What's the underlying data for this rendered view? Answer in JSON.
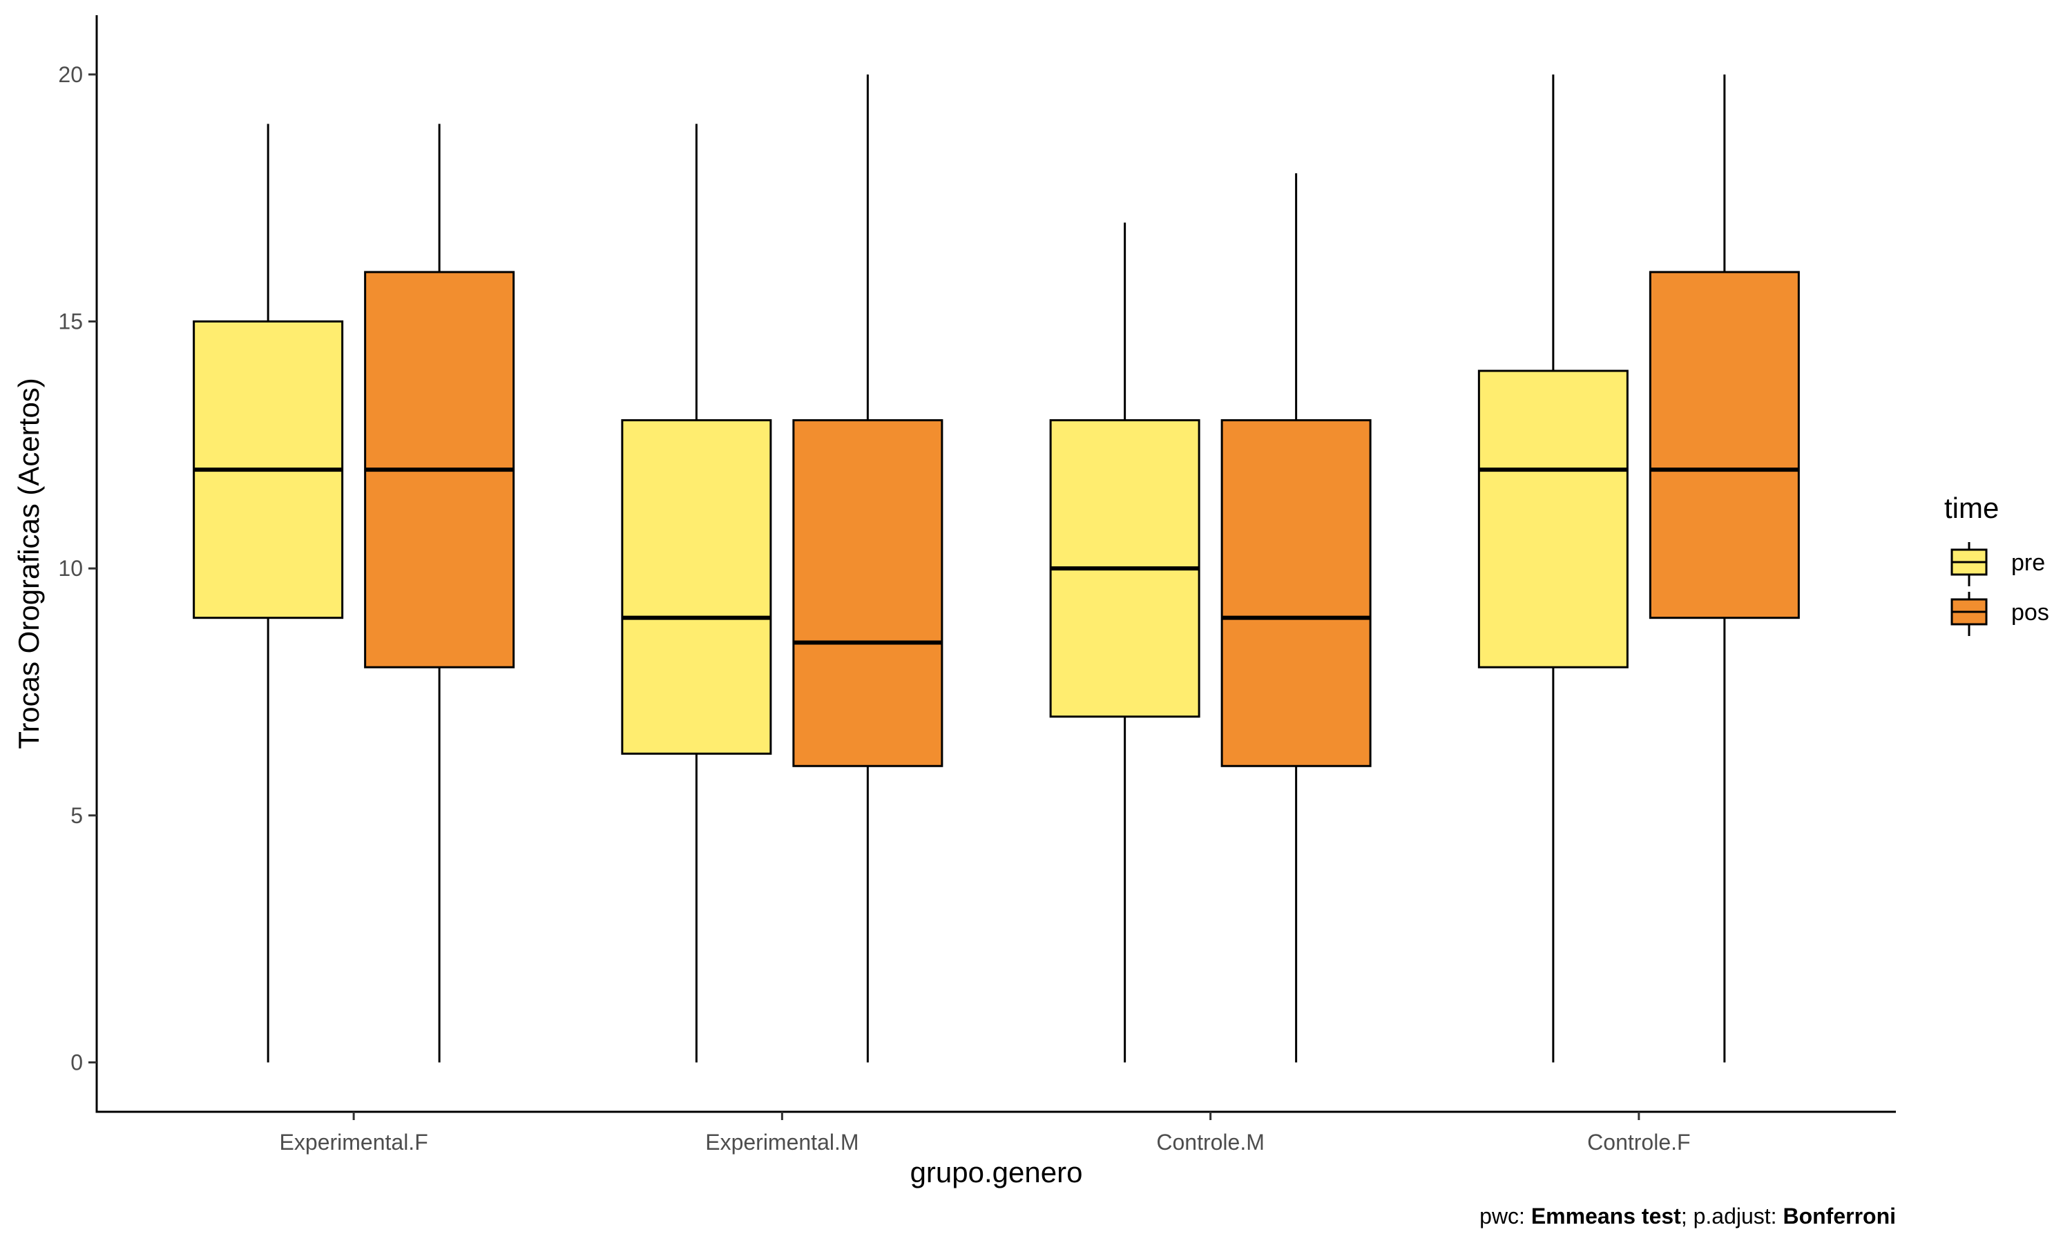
{
  "chart_data": {
    "type": "boxplot",
    "xlabel": "grupo.genero",
    "ylabel": "Trocas Orograficas (Acertos)",
    "ylim": [
      -1,
      21.2
    ],
    "yticks": [
      0,
      5,
      10,
      15,
      20
    ],
    "grid": false,
    "categories": [
      "Experimental.F",
      "Experimental.M",
      "Controle.M",
      "Controle.F"
    ],
    "legend": {
      "title": "time",
      "placement": "right"
    },
    "series": [
      {
        "name": "pre",
        "color": "#FFED6F",
        "boxes": [
          {
            "min": 0,
            "q1": 9,
            "median": 12,
            "q3": 15,
            "max": 19
          },
          {
            "min": 0,
            "q1": 6.25,
            "median": 9,
            "q3": 13,
            "max": 19
          },
          {
            "min": 0,
            "q1": 7,
            "median": 10,
            "q3": 13,
            "max": 17
          },
          {
            "min": 0,
            "q1": 8,
            "median": 12,
            "q3": 14,
            "max": 20
          }
        ]
      },
      {
        "name": "pos",
        "color": "#F28E2F",
        "boxes": [
          {
            "min": 0,
            "q1": 8,
            "median": 12,
            "q3": 16,
            "max": 19
          },
          {
            "min": 0,
            "q1": 6,
            "median": 8.5,
            "q3": 13,
            "max": 20
          },
          {
            "min": 0,
            "q1": 6,
            "median": 9,
            "q3": 13,
            "max": 18
          },
          {
            "min": 0,
            "q1": 9,
            "median": 12,
            "q3": 16,
            "max": 20
          }
        ]
      }
    ],
    "caption": {
      "prefix": "pwc: ",
      "test": "Emmeans test",
      "middle": "; p.adjust: ",
      "adjust": "Bonferroni"
    }
  }
}
